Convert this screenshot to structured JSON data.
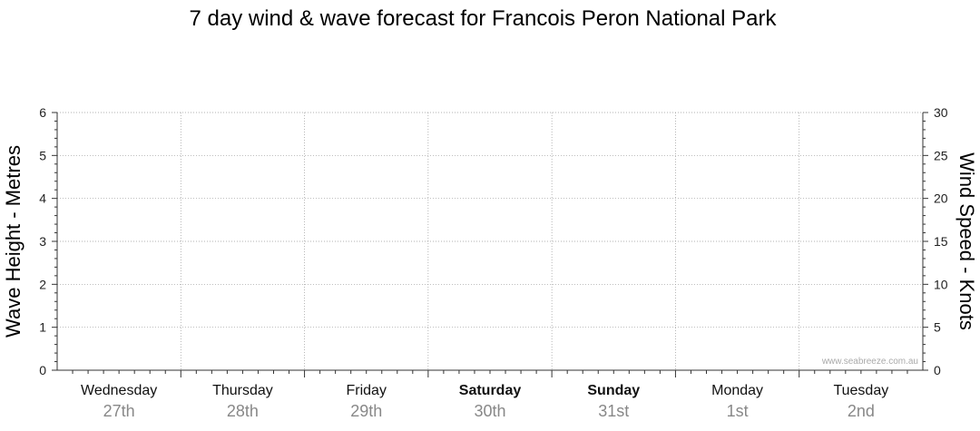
{
  "chart_data": {
    "type": "line",
    "title": "7 day wind & wave forecast for Francois Peron National Park",
    "y_left": {
      "label": "Wave Height - Metres",
      "range": [
        0,
        6
      ],
      "ticks": [
        "0",
        "1",
        "2",
        "3",
        "4",
        "5",
        "6"
      ]
    },
    "y_right": {
      "label": "Wind Speed - Knots",
      "range": [
        0,
        30
      ],
      "ticks": [
        "0",
        "5",
        "10",
        "15",
        "20",
        "25",
        "30"
      ]
    },
    "days": [
      {
        "name": "Wednesday",
        "date": "27th",
        "bold": false
      },
      {
        "name": "Thursday",
        "date": "28th",
        "bold": false
      },
      {
        "name": "Friday",
        "date": "29th",
        "bold": false
      },
      {
        "name": "Saturday",
        "date": "30th",
        "bold": true
      },
      {
        "name": "Sunday",
        "date": "31st",
        "bold": true
      },
      {
        "name": "Monday",
        "date": "1st",
        "bold": false
      },
      {
        "name": "Tuesday",
        "date": "2nd",
        "bold": false
      }
    ],
    "series": [],
    "grid": true,
    "watermark": "www.seabreeze.com.au"
  }
}
